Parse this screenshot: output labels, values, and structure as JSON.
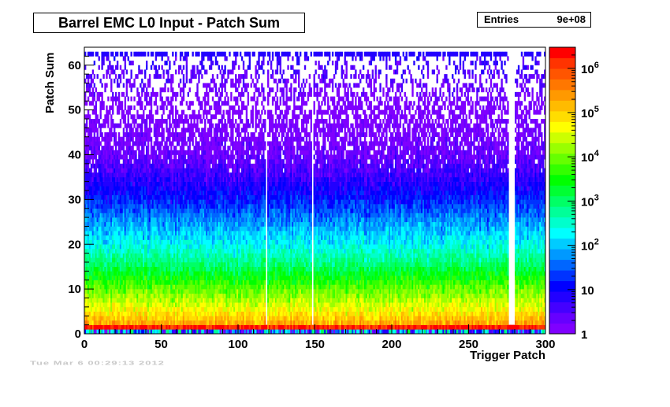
{
  "header": {
    "title": "Barrel EMC L0 Input - Patch Sum",
    "stats_label": "Entries",
    "stats_value": "9e+08"
  },
  "footer": {
    "timestamp": "Tue Mar  6 00:29:13 2012"
  },
  "chart_data": {
    "type": "heatmap",
    "title": "Barrel EMC L0 Input - Patch Sum",
    "xlabel": "Trigger Patch",
    "ylabel": "Patch Sum",
    "xlim": [
      0,
      300
    ],
    "ylim": [
      0,
      64
    ],
    "x_ticks": [
      0,
      50,
      100,
      150,
      200,
      250,
      300
    ],
    "y_ticks": [
      0,
      10,
      20,
      30,
      40,
      50,
      60
    ],
    "x_bins": 300,
    "y_bins": 64,
    "zlim": [
      1,
      3000000
    ],
    "z_scale": "log",
    "colorbar_ticks": [
      {
        "value": 1,
        "label": "1"
      },
      {
        "value": 10,
        "label": "10"
      },
      {
        "value": 100,
        "label": "10^2"
      },
      {
        "value": 1000,
        "label": "10^3"
      },
      {
        "value": 10000,
        "label": "10^4"
      },
      {
        "value": 100000,
        "label": "10^5"
      },
      {
        "value": 1000000,
        "label": "10^6"
      }
    ],
    "profile": {
      "description_rows": [
        {
          "y": 0,
          "counts": 300
        },
        {
          "y": 1,
          "counts": 2000000
        },
        {
          "y": 2,
          "counts": 200000
        },
        {
          "y": 5,
          "counts": 50000
        },
        {
          "y": 10,
          "counts": 8000
        },
        {
          "y": 15,
          "counts": 1000
        },
        {
          "y": 20,
          "counts": 200
        },
        {
          "y": 25,
          "counts": 60
        },
        {
          "y": 30,
          "counts": 15
        },
        {
          "y": 35,
          "counts": 5
        },
        {
          "y": 40,
          "counts": 2
        },
        {
          "y": 50,
          "counts": 1
        },
        {
          "y": 62,
          "counts": 6
        }
      ],
      "dead_patches": [
        118,
        148,
        276,
        277,
        278,
        279
      ]
    },
    "legend": "none",
    "grid": false
  },
  "colors": {
    "palette": [
      "#7f00ff",
      "#6600ff",
      "#4400ff",
      "#2200ff",
      "#0000ff",
      "#0033ff",
      "#0066ff",
      "#0099ff",
      "#00ccff",
      "#00ffff",
      "#00ffcc",
      "#00ff99",
      "#00ff66",
      "#00ff33",
      "#00ff00",
      "#33ff00",
      "#66ff00",
      "#99ff00",
      "#ccff00",
      "#ffff00",
      "#ffdd00",
      "#ffbb00",
      "#ff9900",
      "#ff7700",
      "#ff5500",
      "#ff3300",
      "#ff0000"
    ]
  }
}
